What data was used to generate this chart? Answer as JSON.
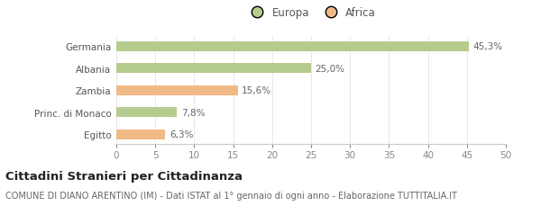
{
  "categories": [
    "Germania",
    "Albania",
    "Zambia",
    "Princ. di Monaco",
    "Egitto"
  ],
  "values": [
    45.3,
    25.0,
    15.6,
    7.8,
    6.3
  ],
  "labels": [
    "45,3%",
    "25,0%",
    "15,6%",
    "7,8%",
    "6,3%"
  ],
  "colors": [
    "#b5cc8e",
    "#b5cc8e",
    "#f0b986",
    "#b5cc8e",
    "#f0b986"
  ],
  "legend_items": [
    {
      "label": "Europa",
      "color": "#b5cc8e"
    },
    {
      "label": "Africa",
      "color": "#f0b986"
    }
  ],
  "xlim": [
    0,
    50
  ],
  "xticks": [
    0,
    5,
    10,
    15,
    20,
    25,
    30,
    35,
    40,
    45,
    50
  ],
  "title_bold": "Cittadini Stranieri per Cittadinanza",
  "subtitle": "COMUNE DI DIANO ARENTINO (IM) - Dati ISTAT al 1° gennaio di ogni anno - Elaborazione TUTTITALIA.IT",
  "background_color": "#ffffff",
  "bar_height": 0.45,
  "title_fontsize": 9.5,
  "subtitle_fontsize": 7.0,
  "tick_fontsize": 7.5,
  "label_fontsize": 7.5,
  "legend_fontsize": 8.5,
  "ytick_fontsize": 7.5
}
